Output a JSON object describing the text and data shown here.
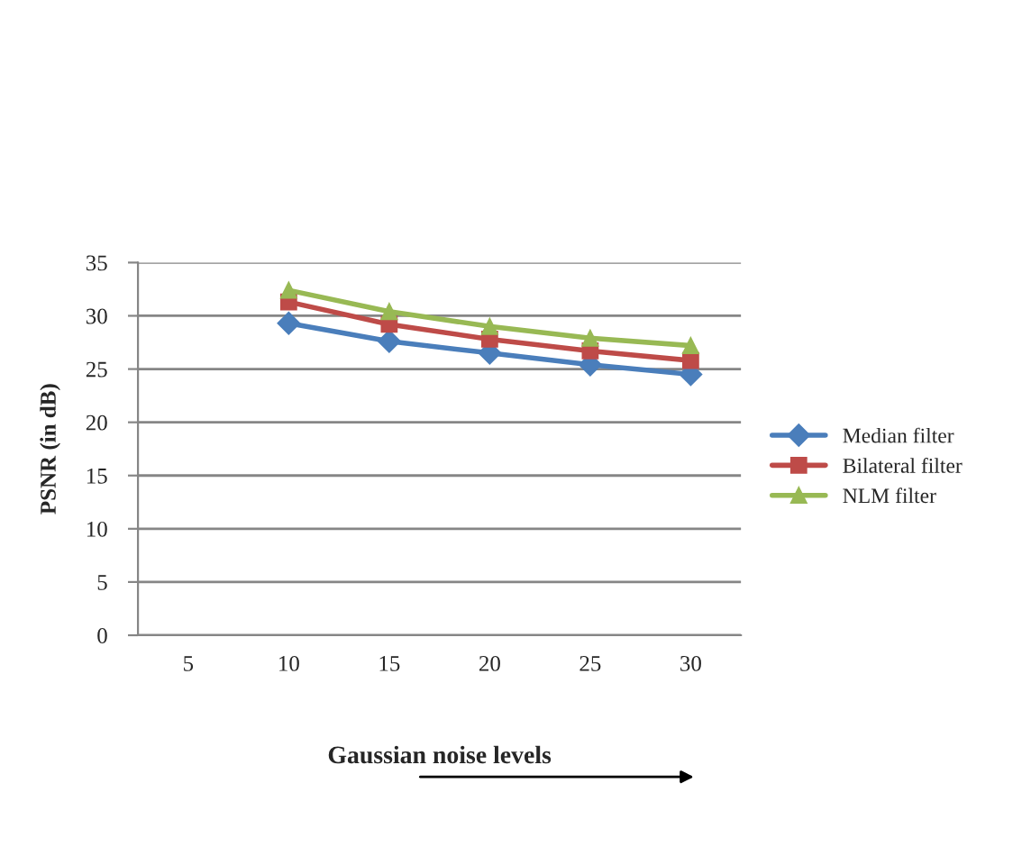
{
  "chart_data": {
    "type": "line",
    "xlabel": "Gaussian noise levels",
    "ylabel": "PSNR (in dB)",
    "categories": [
      "5",
      "10",
      "15",
      "20",
      "25",
      "30"
    ],
    "series": [
      {
        "name": "Median filter",
        "color": "#4a7ebb",
        "marker": "diamond",
        "values": [
          null,
          29.3,
          27.6,
          26.5,
          25.4,
          24.5
        ]
      },
      {
        "name": "Bilateral filter",
        "color": "#be4b48",
        "marker": "square",
        "values": [
          null,
          31.3,
          29.2,
          27.8,
          26.7,
          25.8
        ]
      },
      {
        "name": "NLM filter",
        "color": "#98b954",
        "marker": "triangle",
        "values": [
          null,
          32.4,
          30.4,
          29.0,
          27.9,
          27.2
        ]
      }
    ],
    "ylim": [
      0,
      35
    ],
    "yticks": [
      0,
      5,
      10,
      15,
      20,
      25,
      30,
      35
    ],
    "grid": "y",
    "legend": "right"
  }
}
